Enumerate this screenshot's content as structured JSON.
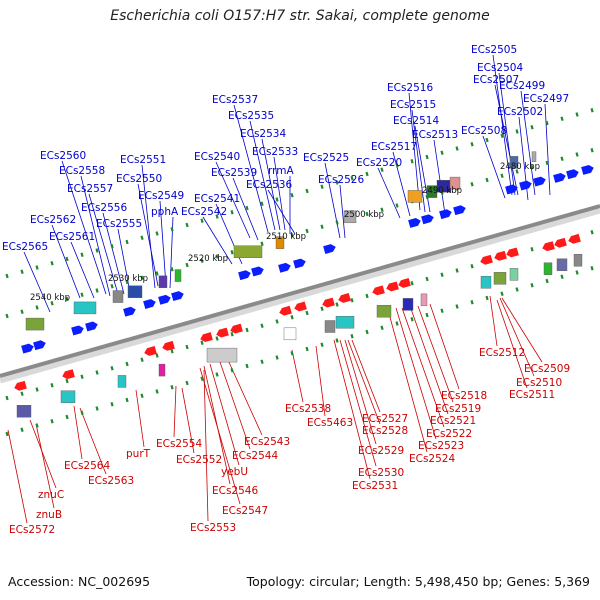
{
  "header": {
    "title": "Escherichia coli O157:H7 str. Sakai, complete genome"
  },
  "footer": {
    "accession": "Accession: NC_002695",
    "summary": "Topology: circular; Length: 5,498,450 bp; Genes: 5,369"
  },
  "colors": {
    "forward_label": "#0000cc",
    "reverse_label": "#cc0000",
    "forward_gene": "#0a1eff",
    "reverse_gene": "#ff1a1a",
    "backbone": "#8a8a8a",
    "tick": "#1e8a2a"
  },
  "scale_labels": [
    {
      "text": "2540 kbp"
    },
    {
      "text": "2530 kbp"
    },
    {
      "text": "2520 kbp"
    },
    {
      "text": "2510 kbp"
    },
    {
      "text": "2500 kbp"
    },
    {
      "text": "2490 kbp"
    },
    {
      "text": "2480 kbp"
    }
  ],
  "forward_labels": [
    {
      "text": "ECs2505"
    },
    {
      "text": "ECs2504"
    },
    {
      "text": "ECs2507"
    },
    {
      "text": "ECs2499"
    },
    {
      "text": "ECs2497"
    },
    {
      "text": "ECs2502"
    },
    {
      "text": "ECs2516"
    },
    {
      "text": "ECs2515"
    },
    {
      "text": "ECs2514"
    },
    {
      "text": "ECs2513"
    },
    {
      "text": "ECs2508"
    },
    {
      "text": "ECs2517"
    },
    {
      "text": "ECs2520"
    },
    {
      "text": "ECs2537"
    },
    {
      "text": "ECs2535"
    },
    {
      "text": "ECs2534"
    },
    {
      "text": "ECs2533"
    },
    {
      "text": "ECs2525"
    },
    {
      "text": "rrmA"
    },
    {
      "text": "ECs2526"
    },
    {
      "text": "ECs2540"
    },
    {
      "text": "ECs2539"
    },
    {
      "text": "ECs2536"
    },
    {
      "text": "ECs2560"
    },
    {
      "text": "ECs2551"
    },
    {
      "text": "ECs2558"
    },
    {
      "text": "ECs2550"
    },
    {
      "text": "ECs2557"
    },
    {
      "text": "ECs2549"
    },
    {
      "text": "pphA"
    },
    {
      "text": "ECs2541"
    },
    {
      "text": "ECs2556"
    },
    {
      "text": "ECs2542"
    },
    {
      "text": "ECs2562"
    },
    {
      "text": "ECs2555"
    },
    {
      "text": "ECs2561"
    },
    {
      "text": "ECs2565"
    }
  ],
  "reverse_labels": [
    {
      "text": "ECs2512"
    },
    {
      "text": "ECs2509"
    },
    {
      "text": "ECs2510"
    },
    {
      "text": "ECs2511"
    },
    {
      "text": "ECs2518"
    },
    {
      "text": "ECs2519"
    },
    {
      "text": "ECs2521"
    },
    {
      "text": "ECs2522"
    },
    {
      "text": "ECs2523"
    },
    {
      "text": "ECs2524"
    },
    {
      "text": "ECs2538"
    },
    {
      "text": "ECs5463"
    },
    {
      "text": "ECs2527"
    },
    {
      "text": "ECs2528"
    },
    {
      "text": "ECs2529"
    },
    {
      "text": "ECs2530"
    },
    {
      "text": "ECs2531"
    },
    {
      "text": "ECs2543"
    },
    {
      "text": "ECs2544"
    },
    {
      "text": "yebU"
    },
    {
      "text": "ECs2546"
    },
    {
      "text": "ECs2547"
    },
    {
      "text": "ECs2554"
    },
    {
      "text": "ECs2552"
    },
    {
      "text": "ECs2553"
    },
    {
      "text": "purT"
    },
    {
      "text": "ECs2564"
    },
    {
      "text": "ECs2563"
    },
    {
      "text": "znuC"
    },
    {
      "text": "znuB"
    },
    {
      "text": "ECs2572"
    }
  ]
}
